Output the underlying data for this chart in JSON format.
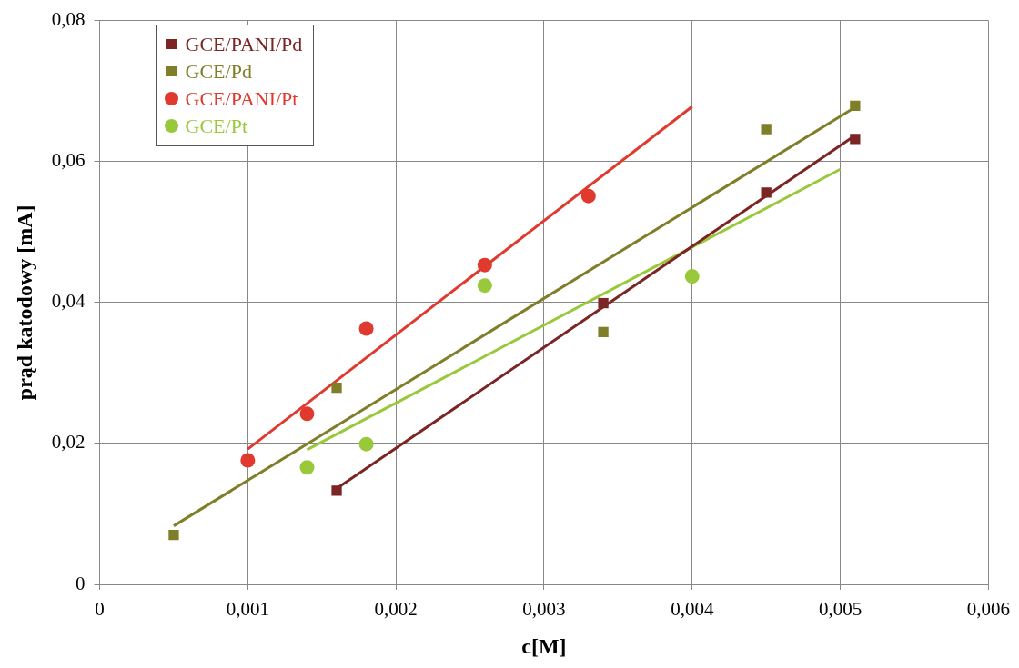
{
  "chart_data": {
    "type": "scatter",
    "xlabel": "c[M]",
    "ylabel": "prąd katodowy [mA]",
    "xlim": [
      0,
      0.006
    ],
    "xticks": [
      0,
      {
        "value": 0.001,
        "label": "0,001"
      },
      {
        "value": 0.002,
        "label": "0,002"
      },
      {
        "value": 0.003,
        "label": "0,003"
      },
      {
        "value": 0.004,
        "label": "0,004"
      },
      {
        "value": 0.005,
        "label": "0,005"
      },
      {
        "value": 0.006,
        "label": "0,006"
      }
    ],
    "ylim": [
      0,
      0.08
    ],
    "yticks": [
      0,
      {
        "value": 0.02,
        "label": "0,02"
      },
      {
        "value": 0.04,
        "label": "0,04"
      },
      {
        "value": 0.06,
        "label": "0,06"
      },
      {
        "value": 0.08,
        "label": "0,08"
      }
    ],
    "grid": true,
    "legend": "top left",
    "series": [
      {
        "name": "GCE/PANI/Pd",
        "color": "#7b2525",
        "marker": "square",
        "x": [
          0.0016,
          0.0034,
          0.0045,
          0.0051
        ],
        "values": [
          0.0133,
          0.0399,
          0.0556,
          0.0632
        ]
      },
      {
        "name": "GCE/Pd",
        "color": "#7f7f2a",
        "marker": "square",
        "x": [
          0.0005,
          0.0016,
          0.0034,
          0.0045,
          0.0051
        ],
        "values": [
          0.007,
          0.0279,
          0.0358,
          0.0646,
          0.0679
        ]
      },
      {
        "name": "GCE/PANI/Pt",
        "color": "#e0392e",
        "marker": "circle",
        "x": [
          0.001,
          0.0014,
          0.0018,
          0.0026,
          0.0033
        ],
        "values": [
          0.0176,
          0.0242,
          0.0363,
          0.0453,
          0.0551
        ]
      },
      {
        "name": "GCE/Pt",
        "color": "#99c93a",
        "marker": "circle",
        "x": [
          0.0014,
          0.0018,
          0.0026,
          0.004
        ],
        "values": [
          0.0166,
          0.0199,
          0.0424,
          0.0437
        ]
      },
      {
        "type": "line",
        "color": "#7b2525",
        "marker": "none",
        "x": [
          0.0016,
          0.0051
        ],
        "values": [
          0.0136,
          0.0637
        ]
      },
      {
        "type": "line",
        "color": "#7f7f2a",
        "marker": "none",
        "x": [
          0.0005,
          0.0051
        ],
        "values": [
          0.0083,
          0.0677
        ]
      },
      {
        "type": "line",
        "color": "#e0392e",
        "marker": "none",
        "x": [
          0.001,
          0.004
        ],
        "values": [
          0.0192,
          0.0678
        ]
      },
      {
        "type": "line",
        "color": "#99c93a",
        "marker": "none",
        "x": [
          0.0014,
          0.005
        ],
        "values": [
          0.0191,
          0.0589
        ]
      }
    ]
  }
}
